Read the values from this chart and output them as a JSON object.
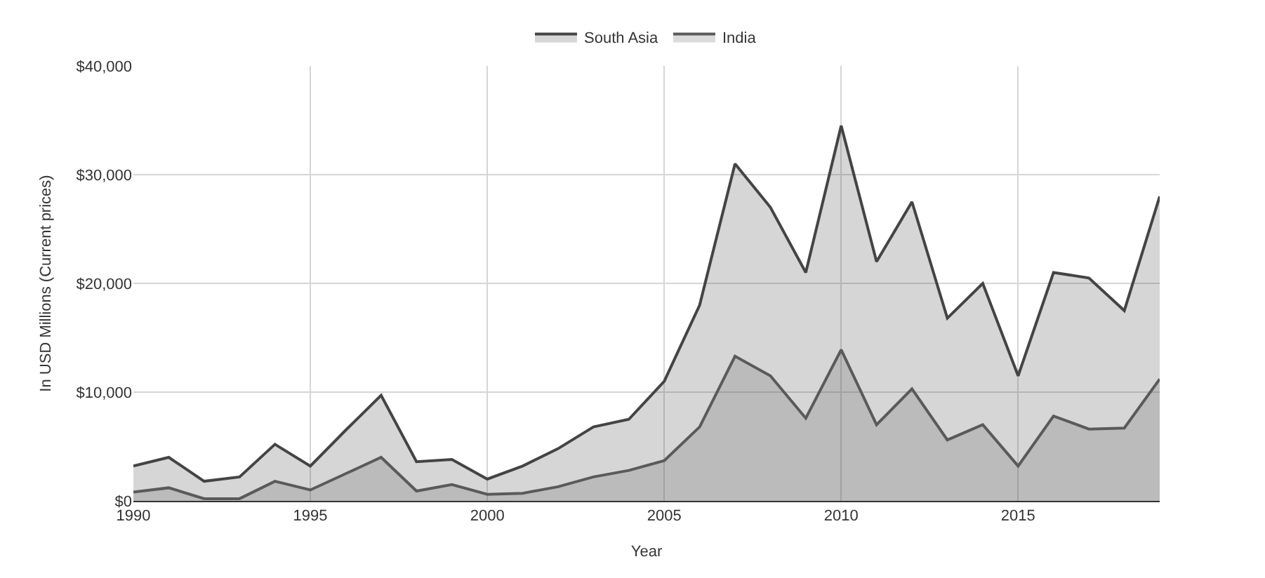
{
  "chart_data": {
    "type": "area",
    "xlabel": "Year",
    "ylabel": "In USD Millions (Current prices)",
    "x": [
      1990,
      1991,
      1992,
      1993,
      1994,
      1995,
      1996,
      1997,
      1998,
      1999,
      2000,
      2001,
      2002,
      2003,
      2004,
      2005,
      2006,
      2007,
      2008,
      2009,
      2010,
      2011,
      2012,
      2013,
      2014,
      2015,
      2016,
      2017,
      2018,
      2019
    ],
    "series": [
      {
        "name": "South Asia",
        "color": "#444444",
        "values": [
          3200,
          4000,
          1800,
          2200,
          5200,
          3200,
          6500,
          9700,
          3600,
          3800,
          2000,
          3200,
          4800,
          6800,
          7500,
          11000,
          18000,
          31000,
          27000,
          21000,
          34500,
          22000,
          27500,
          16800,
          20000,
          11500,
          21000,
          20500,
          17500,
          28000
        ]
      },
      {
        "name": "India",
        "color": "#5a5a5a",
        "values": [
          800,
          1200,
          200,
          200,
          1800,
          1000,
          2500,
          4000,
          900,
          1500,
          600,
          700,
          1300,
          2200,
          2800,
          3700,
          6800,
          13300,
          11500,
          7600,
          13900,
          7000,
          10300,
          5600,
          7000,
          3200,
          7800,
          6600,
          6700,
          11200
        ]
      }
    ],
    "xlim": [
      1990,
      2019
    ],
    "xticks": [
      1990,
      1995,
      2000,
      2005,
      2010,
      2015
    ],
    "ylim": [
      0,
      40000
    ],
    "yticks": [
      {
        "value": 0,
        "label": "$0"
      },
      {
        "value": 10000,
        "label": "$10,000"
      },
      {
        "value": 20000,
        "label": "$20,000"
      },
      {
        "value": 30000,
        "label": "$30,000"
      },
      {
        "value": 40000,
        "label": "$40,000"
      }
    ],
    "grid": true,
    "legend": "top"
  }
}
